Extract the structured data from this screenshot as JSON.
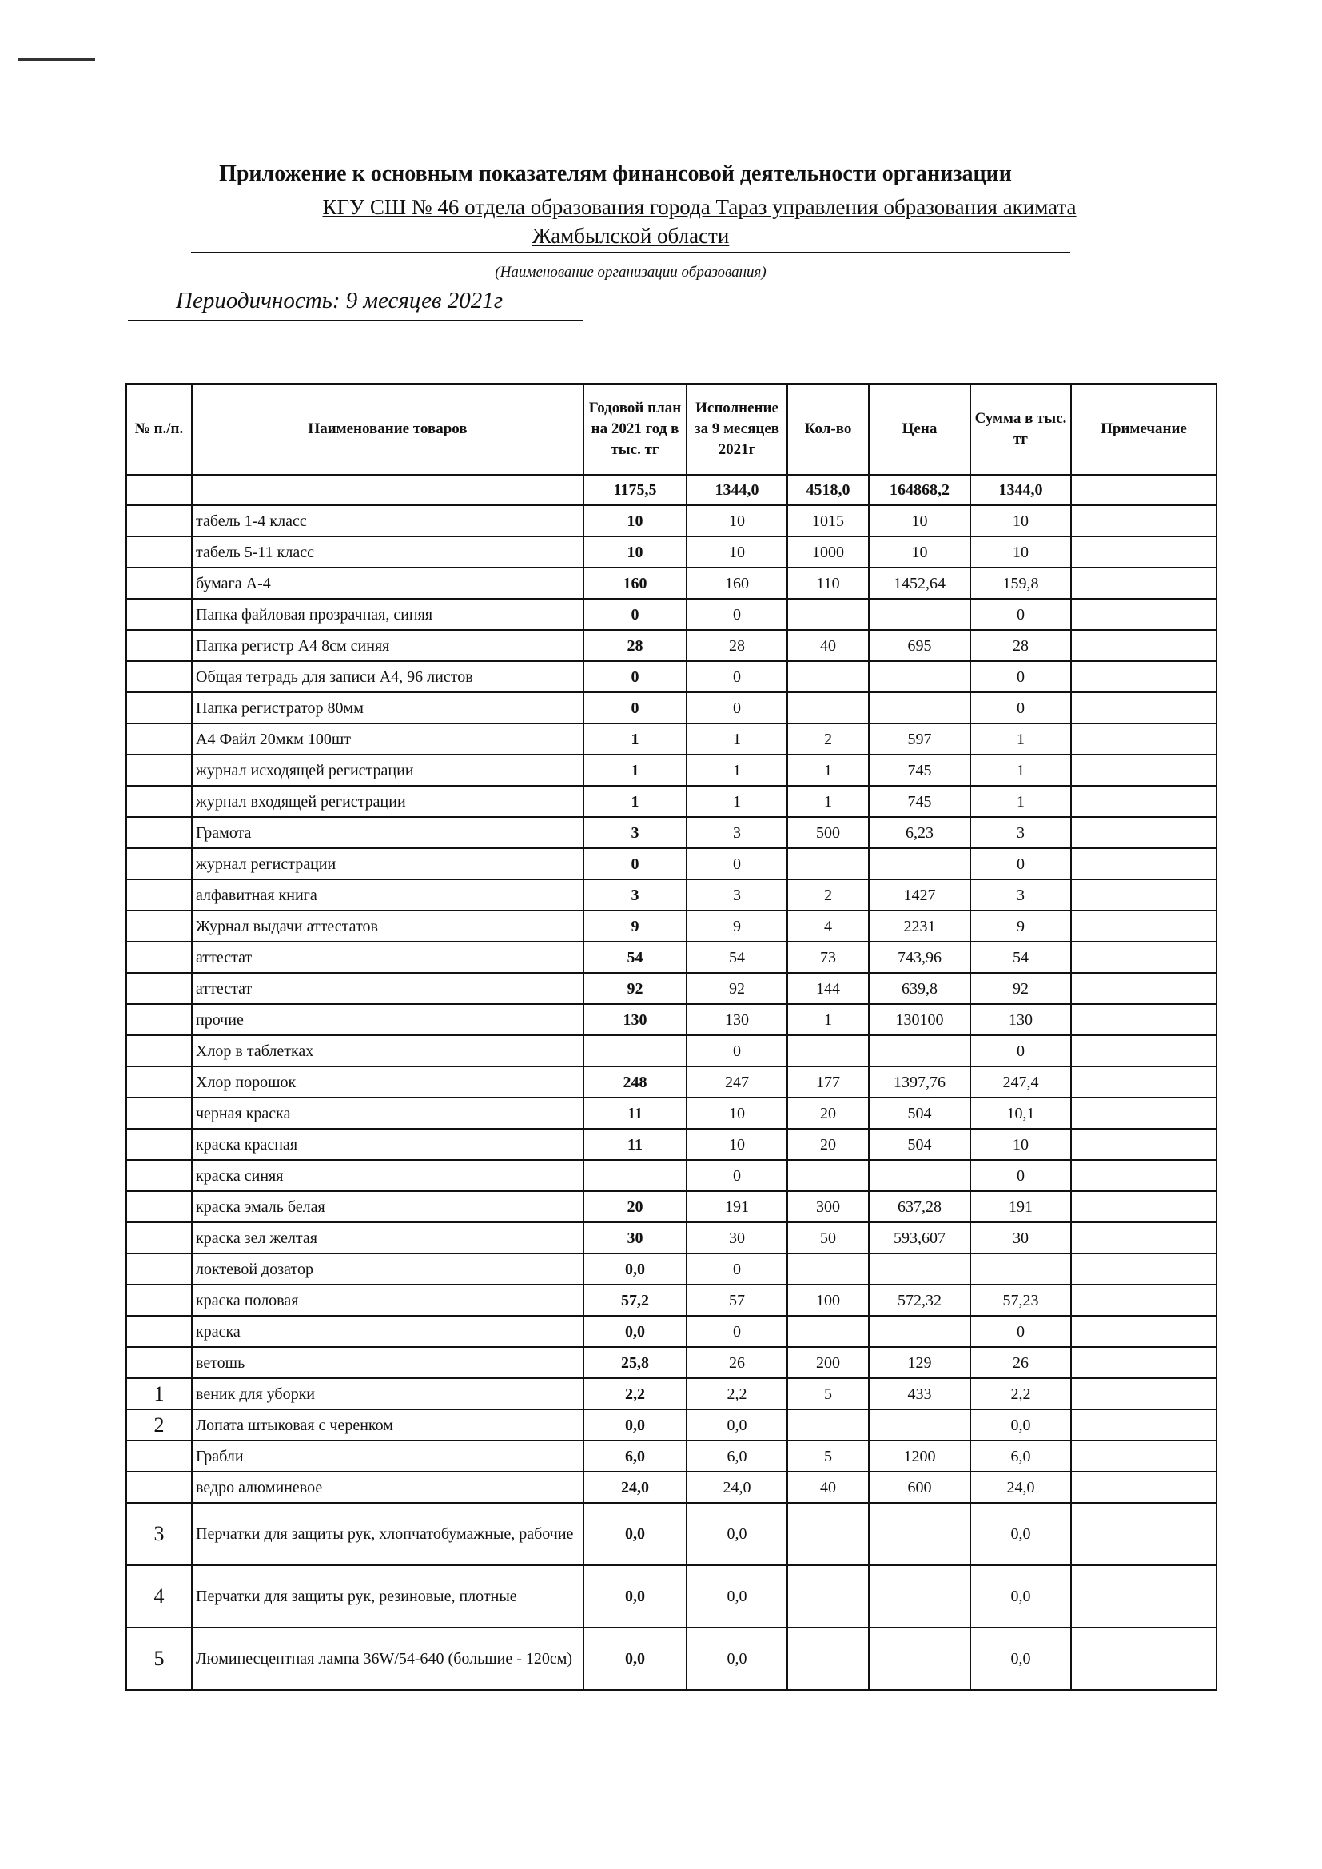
{
  "header": {
    "title": "Приложение к основным  показателям   финансовой деятельности организации",
    "org_line1": "КГУ СШ  № 46  отдела образования  города Тараз управления образования акимата ",
    "org_line2": "Жамбылской области",
    "org_caption": "(Наименование организации образования)",
    "periodicity": "Периодичность: 9 месяцев  2021г"
  },
  "table": {
    "columns": [
      "№ п./п.",
      "Наименование товаров",
      "Годовой план на 2021 год в тыс. тг",
      "Исполнение за 9 месяцев 2021г",
      "Кол-во",
      "Цена",
      "Сумма в тыс. тг",
      "Примечание"
    ],
    "total": [
      "",
      "",
      "1175,5",
      "1344,0",
      "4518,0",
      "164868,2",
      "1344,0",
      ""
    ],
    "rows": [
      [
        "",
        "табель 1-4 класс",
        "10",
        "10",
        "1015",
        "10",
        "10",
        ""
      ],
      [
        "",
        "табель 5-11 класс",
        "10",
        "10",
        "1000",
        "10",
        "10",
        ""
      ],
      [
        "",
        "бумага А-4",
        "160",
        "160",
        "110",
        "1452,64",
        "159,8",
        ""
      ],
      [
        "",
        "Папка файловая прозрачная, синяя",
        "0",
        "0",
        "",
        "",
        "0",
        ""
      ],
      [
        "",
        "Папка регистр А4 8см синяя",
        "28",
        "28",
        "40",
        "695",
        "28",
        ""
      ],
      [
        "",
        "Общая тетрадь для записи А4, 96 листов",
        "0",
        "0",
        "",
        "",
        "0",
        ""
      ],
      [
        "",
        "Папка регистратор 80мм",
        "0",
        "0",
        "",
        "",
        "0",
        ""
      ],
      [
        "",
        "А4  Файл  20мкм 100шт",
        "1",
        "1",
        "2",
        "597",
        "1",
        ""
      ],
      [
        "",
        "журнал исходящей регистрации",
        "1",
        "1",
        "1",
        "745",
        "1",
        ""
      ],
      [
        "",
        "журнал входящей регистрации",
        "1",
        "1",
        "1",
        "745",
        "1",
        ""
      ],
      [
        "",
        "Грамота",
        "3",
        "3",
        "500",
        "6,23",
        "3",
        ""
      ],
      [
        "",
        "журнал  регистрации",
        "0",
        "0",
        "",
        "",
        "0",
        ""
      ],
      [
        "",
        "алфавитная книга",
        "3",
        "3",
        "2",
        "1427",
        "3",
        ""
      ],
      [
        "",
        "Журнал выдачи аттестатов",
        "9",
        "9",
        "4",
        "2231",
        "9",
        ""
      ],
      [
        "",
        "аттестат",
        "54",
        "54",
        "73",
        "743,96",
        "54",
        ""
      ],
      [
        "",
        "аттестат",
        "92",
        "92",
        "144",
        "639,8",
        "92",
        ""
      ],
      [
        "",
        "прочие",
        "130",
        "130",
        "1",
        "130100",
        "130",
        ""
      ],
      [
        "",
        "Хлор в таблетках",
        "",
        "0",
        "",
        "",
        "0",
        ""
      ],
      [
        "",
        "Хлор порошок",
        "248",
        "247",
        "177",
        "1397,76",
        "247,4",
        ""
      ],
      [
        "",
        "черная краска",
        "11",
        "10",
        "20",
        "504",
        "10,1",
        ""
      ],
      [
        "",
        "краска красная",
        "11",
        "10",
        "20",
        "504",
        "10",
        ""
      ],
      [
        "",
        "краска синяя",
        "",
        "0",
        "",
        "",
        "0",
        ""
      ],
      [
        "",
        "краска эмаль белая",
        "20",
        "191",
        "300",
        "637,28",
        "191",
        ""
      ],
      [
        "",
        "краска зел желтая",
        "30",
        "30",
        "50",
        "593,607",
        "30",
        ""
      ],
      [
        "",
        "локтевой дозатор",
        "0,0",
        "0",
        "",
        "",
        "",
        ""
      ],
      [
        "",
        "краска половая",
        "57,2",
        "57",
        "100",
        "572,32",
        "57,23",
        ""
      ],
      [
        "",
        "краска",
        "0,0",
        "0",
        "",
        "",
        "0",
        ""
      ],
      [
        "",
        "ветошь",
        "25,8",
        "26",
        "200",
        "129",
        "26",
        ""
      ],
      [
        "1",
        "веник для уборки",
        "2,2",
        "2,2",
        "5",
        "433",
        "2,2",
        ""
      ],
      [
        "2",
        "Лопата штыковая с черенком",
        "0,0",
        "0,0",
        "",
        "",
        "0,0",
        ""
      ],
      [
        "",
        "Грабли",
        "6,0",
        "6,0",
        "5",
        "1200",
        "6,0",
        ""
      ],
      [
        "",
        "ведро алюминевое",
        "24,0",
        "24,0",
        "40",
        "600",
        "24,0",
        ""
      ],
      [
        "3",
        "Перчатки для защиты рук, хлопчатобумажные, рабочие",
        "0,0",
        "0,0",
        "",
        "",
        "0,0",
        ""
      ],
      [
        "4",
        "Перчатки для защиты рук, резиновые, плотные",
        "0,0",
        "0,0",
        "",
        "",
        "0,0",
        ""
      ],
      [
        "5",
        "Люминесцентная лампа 36W/54-640 (большие - 120см)",
        "0,0",
        "0,0",
        "",
        "",
        "0,0",
        ""
      ]
    ]
  }
}
